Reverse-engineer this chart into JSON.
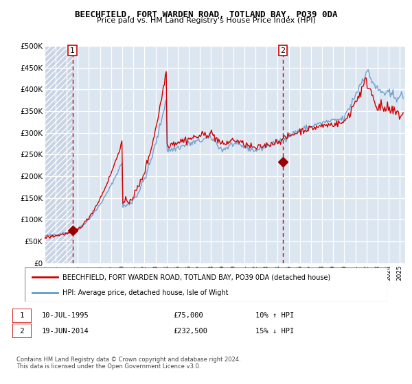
{
  "title": "BEECHFIELD, FORT WARDEN ROAD, TOTLAND BAY, PO39 0DA",
  "subtitle": "Price paid vs. HM Land Registry's House Price Index (HPI)",
  "ylim": [
    0,
    500000
  ],
  "yticks": [
    0,
    50000,
    100000,
    150000,
    200000,
    250000,
    300000,
    350000,
    400000,
    450000,
    500000
  ],
  "ytick_labels": [
    "£0",
    "£50K",
    "£100K",
    "£150K",
    "£200K",
    "£250K",
    "£300K",
    "£350K",
    "£400K",
    "£450K",
    "£500K"
  ],
  "bg_color": "#dce6f1",
  "hatch_bg_color": "#c8d4e3",
  "red_line_color": "#cc0000",
  "blue_line_color": "#6699cc",
  "dashed_line_color": "#cc0000",
  "marker_color": "#990000",
  "point1_year": 1995.53,
  "point1_value": 75000,
  "point2_year": 2014.47,
  "point2_value": 232500,
  "legend_red_label": "BEECHFIELD, FORT WARDEN ROAD, TOTLAND BAY, PO39 0DA (detached house)",
  "legend_blue_label": "HPI: Average price, detached house, Isle of Wight",
  "footer": "Contains HM Land Registry data © Crown copyright and database right 2024.\nThis data is licensed under the Open Government Licence v3.0.",
  "xlim_start": 1993.0,
  "xlim_end": 2025.5
}
